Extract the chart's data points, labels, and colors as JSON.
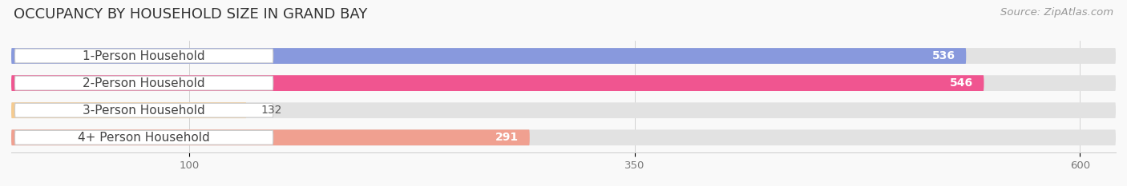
{
  "title": "OCCUPANCY BY HOUSEHOLD SIZE IN GRAND BAY",
  "source": "Source: ZipAtlas.com",
  "categories": [
    "1-Person Household",
    "2-Person Household",
    "3-Person Household",
    "4+ Person Household"
  ],
  "values": [
    536,
    546,
    132,
    291
  ],
  "bar_colors": [
    "#8899dd",
    "#f05590",
    "#f5cb90",
    "#f0a090"
  ],
  "label_bg_colors": [
    "#ffffff",
    "#ffffff",
    "#ffffff",
    "#ffffff"
  ],
  "bar_bg_color": "#e2e2e2",
  "xlim_max": 620,
  "xticks": [
    100,
    350,
    600
  ],
  "bg_color": "#f9f9f9",
  "title_fontsize": 13,
  "source_fontsize": 9.5,
  "label_fontsize": 11,
  "value_fontsize": 10
}
